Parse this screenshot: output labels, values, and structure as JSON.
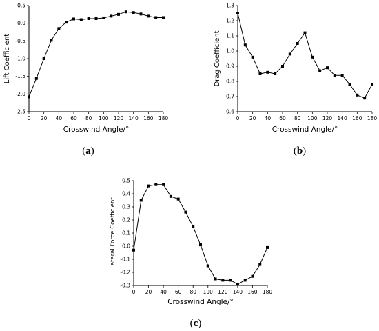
{
  "chart_data": [
    {
      "id": "a",
      "type": "line",
      "caption_letter": "a",
      "xlabel": "Crosswind Angle/°",
      "ylabel": "Lift Coefficient",
      "xlim": [
        0,
        180
      ],
      "ylim": [
        -2.5,
        0.5
      ],
      "xticks": [
        0,
        20,
        40,
        60,
        80,
        100,
        120,
        140,
        160,
        180
      ],
      "yticks": [
        -2.5,
        -2.0,
        -1.5,
        -1.0,
        -0.5,
        0.0,
        0.5
      ],
      "ytick_labels": [
        "-2.5",
        "-2.0",
        "-1.5",
        "-1.0",
        "-0.5",
        "0.0",
        "0.5"
      ],
      "series": [
        {
          "x": [
            0,
            10,
            20,
            30,
            40,
            50,
            60,
            70,
            80,
            90,
            100,
            110,
            120,
            130,
            140,
            150,
            160,
            170,
            180
          ],
          "y": [
            -2.08,
            -1.56,
            -1.0,
            -0.48,
            -0.15,
            0.03,
            0.12,
            0.1,
            0.13,
            0.13,
            0.15,
            0.2,
            0.25,
            0.32,
            0.3,
            0.26,
            0.2,
            0.16,
            0.16
          ]
        }
      ]
    },
    {
      "id": "b",
      "type": "line",
      "caption_letter": "b",
      "xlabel": "Crosswind Angle/°",
      "ylabel": "Drag Coefficient",
      "xlim": [
        0,
        180
      ],
      "ylim": [
        0.6,
        1.3
      ],
      "xticks": [
        0,
        20,
        40,
        60,
        80,
        100,
        120,
        140,
        160,
        180
      ],
      "yticks": [
        0.6,
        0.7,
        0.8,
        0.9,
        1.0,
        1.1,
        1.2,
        1.3
      ],
      "ytick_labels": [
        "0.6",
        "0.7",
        "0.8",
        "0.9",
        "1.0",
        "1.1",
        "1.2",
        "1.3"
      ],
      "series": [
        {
          "x": [
            0,
            10,
            20,
            30,
            40,
            50,
            60,
            70,
            80,
            90,
            100,
            110,
            120,
            130,
            140,
            150,
            160,
            170,
            180
          ],
          "y": [
            1.25,
            1.04,
            0.96,
            0.85,
            0.86,
            0.85,
            0.9,
            0.98,
            1.05,
            1.12,
            0.96,
            0.87,
            0.89,
            0.84,
            0.84,
            0.78,
            0.71,
            0.69,
            0.78
          ]
        }
      ]
    },
    {
      "id": "c",
      "type": "line",
      "caption_letter": "c",
      "xlabel": "Crosswind Angle/°",
      "ylabel": "Lateral Force Coefficient",
      "xlim": [
        0,
        180
      ],
      "ylim": [
        -0.3,
        0.5
      ],
      "xticks": [
        0,
        20,
        40,
        60,
        80,
        100,
        120,
        140,
        160,
        180
      ],
      "yticks": [
        -0.3,
        -0.2,
        -0.1,
        0.0,
        0.1,
        0.2,
        0.3,
        0.4,
        0.5
      ],
      "ytick_labels": [
        "-0.3",
        "-0.2",
        "-0.1",
        "0.0",
        "0.1",
        "0.2",
        "0.3",
        "0.4",
        "0.5"
      ],
      "series": [
        {
          "x": [
            0,
            10,
            20,
            30,
            40,
            50,
            60,
            70,
            80,
            90,
            100,
            110,
            120,
            130,
            140,
            150,
            160,
            170,
            180
          ],
          "y": [
            -0.03,
            0.35,
            0.46,
            0.47,
            0.47,
            0.38,
            0.36,
            0.26,
            0.15,
            0.01,
            -0.15,
            -0.25,
            -0.26,
            -0.26,
            -0.29,
            -0.26,
            -0.23,
            -0.14,
            -0.01
          ]
        }
      ]
    }
  ]
}
